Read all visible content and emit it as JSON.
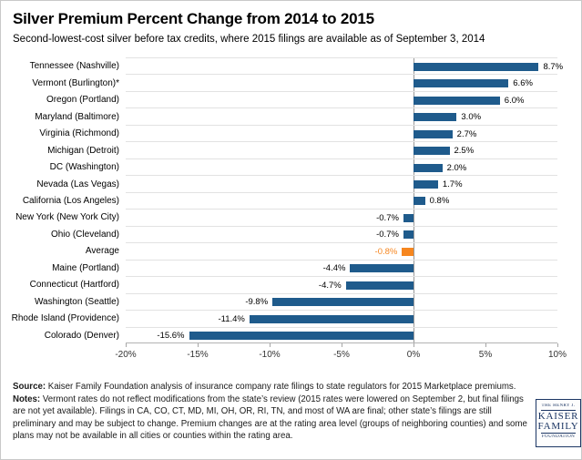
{
  "title": "Silver Premium Percent Change from 2014 to 2015",
  "subtitle": "Second-lowest-cost silver before tax credits, where 2015 filings are available as of September 3, 2014",
  "chart_data": {
    "type": "bar",
    "orientation": "horizontal",
    "title": "Silver Premium Percent Change from 2014 to 2015",
    "categories": [
      "Tennessee (Nashville)",
      "Vermont (Burlington)*",
      "Oregon (Portland)",
      "Maryland (Baltimore)",
      "Virginia (Richmond)",
      "Michigan (Detroit)",
      "DC (Washington)",
      "Nevada (Las Vegas)",
      "California (Los Angeles)",
      "New York (New York City)",
      "Ohio (Cleveland)",
      "Average",
      "Maine (Portland)",
      "Connecticut (Hartford)",
      "Washington (Seattle)",
      "Rhode Island (Providence)",
      "Colorado (Denver)"
    ],
    "values": [
      8.7,
      6.6,
      6.0,
      3.0,
      2.7,
      2.5,
      2.0,
      1.7,
      0.8,
      -0.7,
      -0.7,
      -0.8,
      -4.4,
      -4.7,
      -9.8,
      -11.4,
      -15.6
    ],
    "value_labels": [
      "8.7%",
      "6.6%",
      "6.0%",
      "3.0%",
      "2.7%",
      "2.5%",
      "2.0%",
      "1.7%",
      "0.8%",
      "-0.7%",
      "-0.7%",
      "-0.8%",
      "-4.4%",
      "-4.7%",
      "-9.8%",
      "-11.4%",
      "-15.6%"
    ],
    "highlight_index": 11,
    "highlight_category": "Average",
    "xlim": [
      -20,
      10
    ],
    "x_tick_values": [
      -20,
      -15,
      -10,
      -5,
      0,
      5,
      10
    ],
    "x_tick_labels": [
      "-20%",
      "-15%",
      "-10%",
      "-5%",
      "0%",
      "5%",
      "10%"
    ],
    "bar_color": "#1f5b8c",
    "highlight_color": "#f6861f",
    "grid": true,
    "legend": false
  },
  "footer": {
    "source_label": "Source:",
    "source_text": " Kaiser Family Foundation analysis of insurance company rate filings to state regulators for 2015 Marketplace premiums.",
    "notes_label": "Notes:",
    "notes_text": " Vermont rates do not reflect modifications from the state’s review (2015 rates were lowered on September 2, but final filings are not yet available). Filings in CA, CO, CT, MD, MI, OH, OR, RI, TN, and most of WA are final; other state’s filings are still preliminary and may be subject to change. Premium changes are at the rating area level (groups of neighboring counties) and some plans may not be available in all cities or counties within the rating area."
  },
  "logo": {
    "line1": "THE HENRY J.",
    "line2": "KAISER",
    "line3": "FAMILY",
    "line4": "FOUNDATION",
    "color": "#1c3664"
  }
}
